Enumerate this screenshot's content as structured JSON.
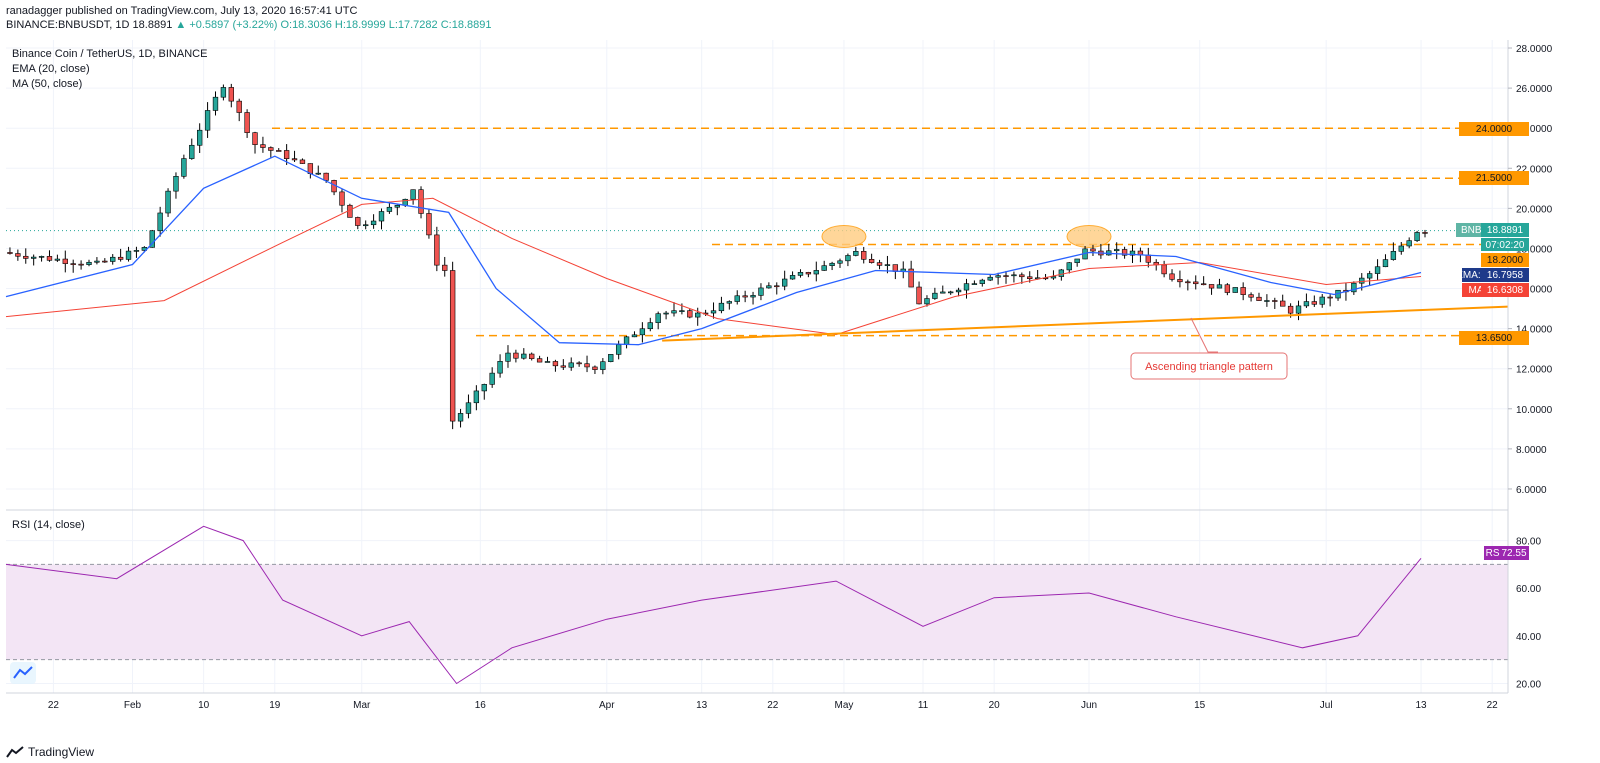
{
  "header": {
    "line1": "ranadagger published on TradingView.com, July 13, 2020 16:57:41 UTC",
    "symbol": "BINANCE:BNBUSDT, 1D",
    "last": "18.8891",
    "change": "▲ +0.5897 (+3.22%)",
    "o": "O:18.3036",
    "h": "H:18.9999",
    "l": "L:17.7282",
    "c": "C:18.8891"
  },
  "legend": {
    "title": "Binance Coin / TetherUS, 1D, BINANCE",
    "ema": "EMA (20, close)",
    "ma": "MA (50, close)",
    "rsi": "RSI (14, close)"
  },
  "badges": {
    "symbol": "BNBUSDT",
    "price": "18.8891",
    "countdown": "07:02:20",
    "level_1820": "18.2000",
    "ema_ma": "EMA:MA",
    "ema_value": "16.7958",
    "ma": "MA",
    "ma_value": "16.6308",
    "level_2400": "24.0000",
    "level_2150": "21.5000",
    "level_1365": "13.6500",
    "rsi": "RSI",
    "rsi_value": "72.55"
  },
  "annotation": "Ascending triangle pattern",
  "footer": {
    "brand": "TradingView"
  },
  "colors": {
    "up": "#26a69a",
    "down": "#ef5350",
    "ema": "#2962ff",
    "ma": "#f44336",
    "level": "#ff9800",
    "trend": "#ff9800",
    "rsi": "#9c27b0",
    "rsi_band": "#f3e5f5"
  },
  "chart_data": [
    {
      "type": "candlestick",
      "title": "Binance Coin / TetherUS, 1D, BINANCE",
      "x_ticks": [
        "22",
        "Feb",
        "10",
        "19",
        "Mar",
        "16",
        "Apr",
        "13",
        "22",
        "May",
        "11",
        "20",
        "Jun",
        "15",
        "Jul",
        "13",
        "22"
      ],
      "y_ticks": [
        "28.0000",
        "26.0000",
        "24.0000",
        "22.0000",
        "20.0000",
        "18.0000",
        "16.0000",
        "14.0000",
        "12.0000",
        "10.0000",
        "8.0000",
        "6.0000"
      ],
      "ylim": [
        5.2,
        28.4
      ],
      "x_range": [
        "2020-01-16",
        "2020-07-24"
      ],
      "grid": true,
      "horizontal_levels": [
        24.0,
        21.5,
        18.2,
        13.65
      ],
      "trendline": {
        "from": [
          "2020-04-08",
          13.4
        ],
        "to": [
          "2020-07-24",
          15.1
        ]
      },
      "resistance_highlights": [
        [
          "2020-05-01",
          18.2
        ],
        [
          "2020-06-01",
          18.2
        ]
      ],
      "series_ema20": {
        "x": [
          "2020-01-16",
          "2020-02-01",
          "2020-02-10",
          "2020-02-19",
          "2020-03-01",
          "2020-03-12",
          "2020-03-18",
          "2020-03-26",
          "2020-04-05",
          "2020-04-13",
          "2020-04-25",
          "2020-05-05",
          "2020-05-20",
          "2020-06-01",
          "2020-06-12",
          "2020-06-24",
          "2020-07-02",
          "2020-07-13"
        ],
        "y": [
          15.6,
          17.2,
          21.0,
          22.6,
          20.5,
          19.8,
          16.0,
          13.3,
          13.2,
          14.0,
          15.8,
          16.9,
          16.7,
          17.8,
          17.6,
          16.3,
          15.7,
          16.8
        ]
      },
      "series_ma50": {
        "x": [
          "2020-01-16",
          "2020-02-05",
          "2020-02-20",
          "2020-03-01",
          "2020-03-10",
          "2020-03-20",
          "2020-04-01",
          "2020-04-15",
          "2020-04-30",
          "2020-05-15",
          "2020-06-01",
          "2020-06-15",
          "2020-07-01",
          "2020-07-13"
        ],
        "y": [
          14.6,
          15.4,
          18.3,
          20.2,
          20.5,
          18.5,
          16.5,
          14.5,
          13.7,
          15.6,
          17.0,
          17.3,
          16.2,
          16.6
        ]
      },
      "last_close": 18.8891
    },
    {
      "type": "line",
      "title": "RSI (14, close)",
      "y_ticks": [
        "80.00",
        "60.00",
        "40.00",
        "20.00"
      ],
      "ylim": [
        16,
        92
      ],
      "bands": [
        30,
        70
      ],
      "x": [
        "2020-01-16",
        "2020-01-30",
        "2020-02-10",
        "2020-02-15",
        "2020-02-20",
        "2020-03-01",
        "2020-03-07",
        "2020-03-13",
        "2020-03-20",
        "2020-04-01",
        "2020-04-13",
        "2020-04-30",
        "2020-05-11",
        "2020-05-20",
        "2020-06-01",
        "2020-06-12",
        "2020-06-28",
        "2020-07-05",
        "2020-07-13"
      ],
      "y": [
        70,
        64,
        86,
        80,
        55,
        40,
        46,
        20,
        35,
        47,
        55,
        63,
        44,
        56,
        58,
        48,
        35,
        40,
        72.55
      ],
      "last_value": 72.55
    }
  ]
}
